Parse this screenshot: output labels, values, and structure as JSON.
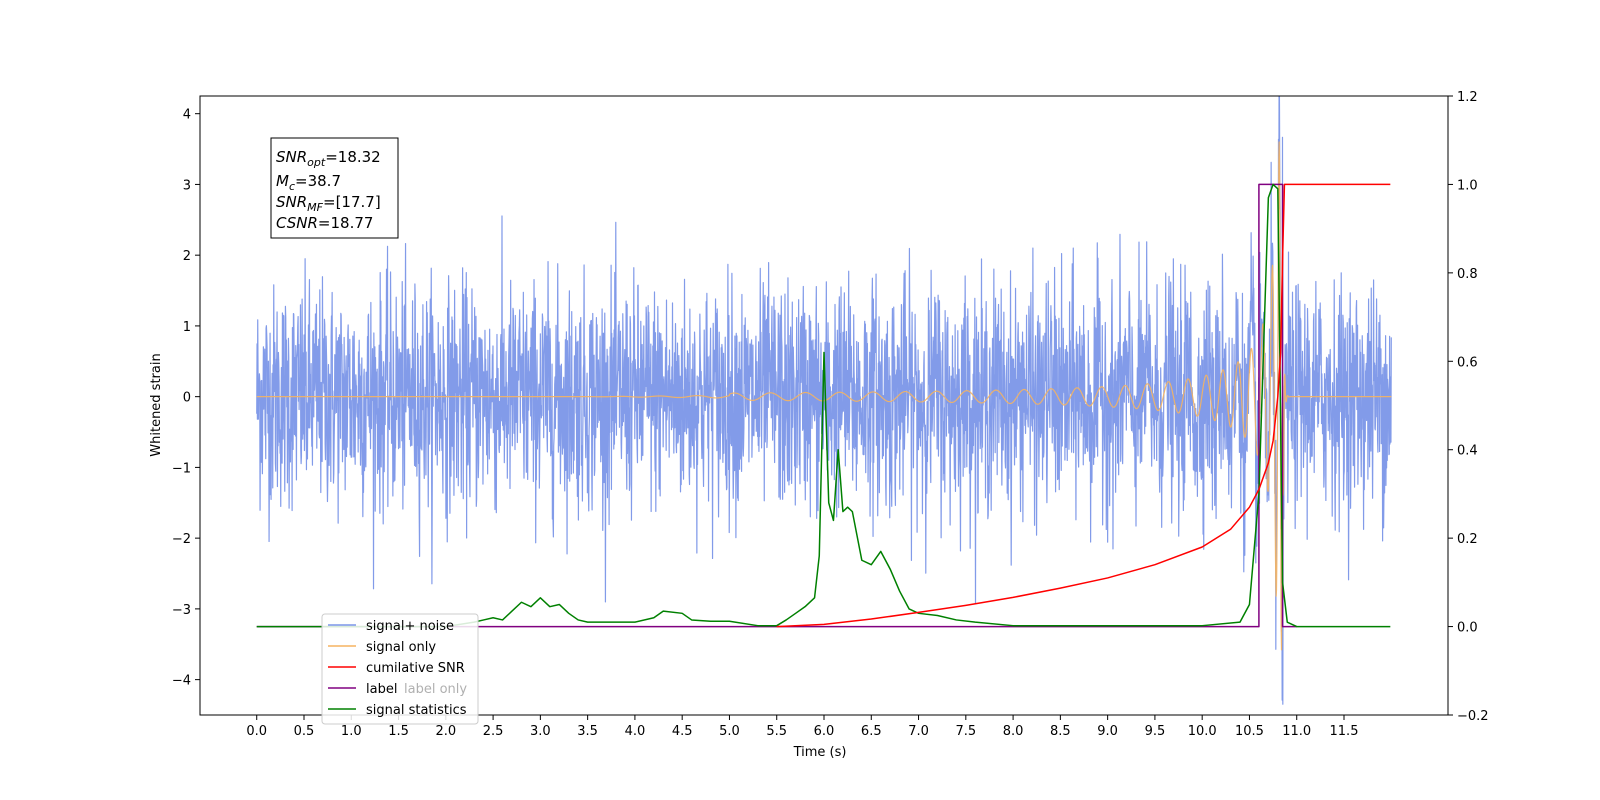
{
  "chart_data": {
    "type": "line",
    "xlabel": "Time (s)",
    "ylabel_left": "Whitened strain",
    "xlim": [
      -0.6,
      12.6
    ],
    "ylim_left": [
      -4.5,
      4.25
    ],
    "ylim_right": [
      -0.2,
      1.2
    ],
    "x_ticks": [
      0.0,
      0.5,
      1.0,
      1.5,
      2.0,
      2.5,
      3.0,
      3.5,
      4.0,
      4.5,
      5.0,
      5.5,
      6.0,
      6.5,
      7.0,
      7.5,
      8.0,
      8.5,
      9.0,
      9.5,
      10.0,
      10.5,
      11.0,
      11.5
    ],
    "x_tick_labels": [
      "0.0",
      "0.5",
      "1.0",
      "1.5",
      "2.0",
      "2.5",
      "3.0",
      "3.5",
      "4.0",
      "4.5",
      "5.0",
      "5.5",
      "6.0",
      "6.5",
      "7.0",
      "7.5",
      "8.0",
      "8.5",
      "9.0",
      "9.5",
      "10.0",
      "10.5",
      "11.0",
      "11.5"
    ],
    "y_left_ticks": [
      4,
      3,
      2,
      1,
      0,
      -1,
      -2,
      -3,
      -4
    ],
    "y_left_tick_labels": [
      "4",
      "3",
      "2",
      "1",
      "0",
      "−1",
      "−2",
      "−3",
      "−4"
    ],
    "y_right_ticks": [
      1.2,
      1.0,
      0.8,
      0.6,
      0.4,
      0.2,
      0.0,
      -0.2
    ],
    "y_right_tick_labels": [
      "1.2",
      "1.0",
      "0.8",
      "0.6",
      "0.4",
      "0.2",
      "0.0",
      "−0.2"
    ],
    "annotation": {
      "snr_opt": {
        "base": "SNR",
        "sub": "opt",
        "value": "=18.32"
      },
      "mc": {
        "base": "M",
        "sub": "c",
        "value": "=38.7"
      },
      "snr_mf": {
        "base": "SNR",
        "sub": "MF",
        "value": "=[17.7]"
      },
      "csnr": {
        "base": "CSNR",
        "value": "=18.77"
      }
    },
    "legend_position": "lower-left",
    "series": [
      {
        "name": "signal+ noise",
        "axis": "left",
        "color": "#7b96e8",
        "description": "whitened noise with amplitude ~1.2 std, plus merger spike near t=10.85",
        "x_range": [
          0.0,
          12.0
        ],
        "spike_x": 10.85,
        "spike_max": 3.75,
        "spike_min": -4.1
      },
      {
        "name": "signal only",
        "axis": "left",
        "color": "#f5b461",
        "description": "chirp oscillation growing to peak near t=10.85",
        "x_range": [
          0.0,
          12.0
        ],
        "peak_x": 10.85,
        "peak_amplitude": 3.6
      },
      {
        "name": "cumilative SNR",
        "axis": "right",
        "color": "#ff0000",
        "x": [
          5.5,
          6.0,
          6.5,
          7.0,
          7.5,
          8.0,
          8.5,
          9.0,
          9.5,
          10.0,
          10.3,
          10.5,
          10.6,
          10.7,
          10.75,
          10.8,
          10.83,
          10.85,
          10.87,
          10.9,
          11.3,
          11.6,
          11.99
        ],
        "y": [
          0.0,
          0.005,
          0.017,
          0.032,
          0.048,
          0.066,
          0.087,
          0.11,
          0.14,
          0.18,
          0.22,
          0.27,
          0.31,
          0.37,
          0.42,
          0.52,
          0.62,
          0.83,
          1.0,
          1.0,
          1.0,
          1.0,
          1.0
        ]
      },
      {
        "name": "label",
        "axis": "right",
        "color": "#800080",
        "x": [
          0.0,
          10.6,
          10.6,
          10.85,
          10.85,
          11.0
        ],
        "y": [
          0.0,
          0.0,
          1.0,
          1.0,
          0.0,
          0.0
        ]
      },
      {
        "name": "label only",
        "axis": "right",
        "color": "#800080",
        "hidden_behind_legend": true
      },
      {
        "name": "signal statistics",
        "axis": "right",
        "color": "#008000",
        "x": [
          0.0,
          1.0,
          2.0,
          2.3,
          2.4,
          2.5,
          2.6,
          2.7,
          2.8,
          2.9,
          3.0,
          3.1,
          3.2,
          3.3,
          3.4,
          3.5,
          3.7,
          4.0,
          4.2,
          4.3,
          4.5,
          4.6,
          4.8,
          5.0,
          5.3,
          5.5,
          5.6,
          5.7,
          5.8,
          5.9,
          5.95,
          6.0,
          6.05,
          6.1,
          6.15,
          6.2,
          6.25,
          6.3,
          6.4,
          6.5,
          6.6,
          6.7,
          6.8,
          6.9,
          7.0,
          7.2,
          7.4,
          7.6,
          8.0,
          9.0,
          10.0,
          10.4,
          10.5,
          10.6,
          10.7,
          10.75,
          10.8,
          10.85,
          10.9,
          11.0,
          11.99
        ],
        "y": [
          0.0,
          0.0,
          0.0,
          0.01,
          0.015,
          0.02,
          0.015,
          0.035,
          0.055,
          0.045,
          0.065,
          0.045,
          0.05,
          0.03,
          0.015,
          0.01,
          0.01,
          0.01,
          0.02,
          0.035,
          0.03,
          0.015,
          0.012,
          0.012,
          0.002,
          0.002,
          0.015,
          0.03,
          0.045,
          0.065,
          0.16,
          0.62,
          0.28,
          0.24,
          0.4,
          0.26,
          0.27,
          0.26,
          0.15,
          0.14,
          0.17,
          0.13,
          0.08,
          0.04,
          0.03,
          0.025,
          0.015,
          0.01,
          0.002,
          0.002,
          0.002,
          0.01,
          0.05,
          0.3,
          0.97,
          1.0,
          0.99,
          0.1,
          0.01,
          0.0,
          0.0
        ]
      }
    ]
  }
}
